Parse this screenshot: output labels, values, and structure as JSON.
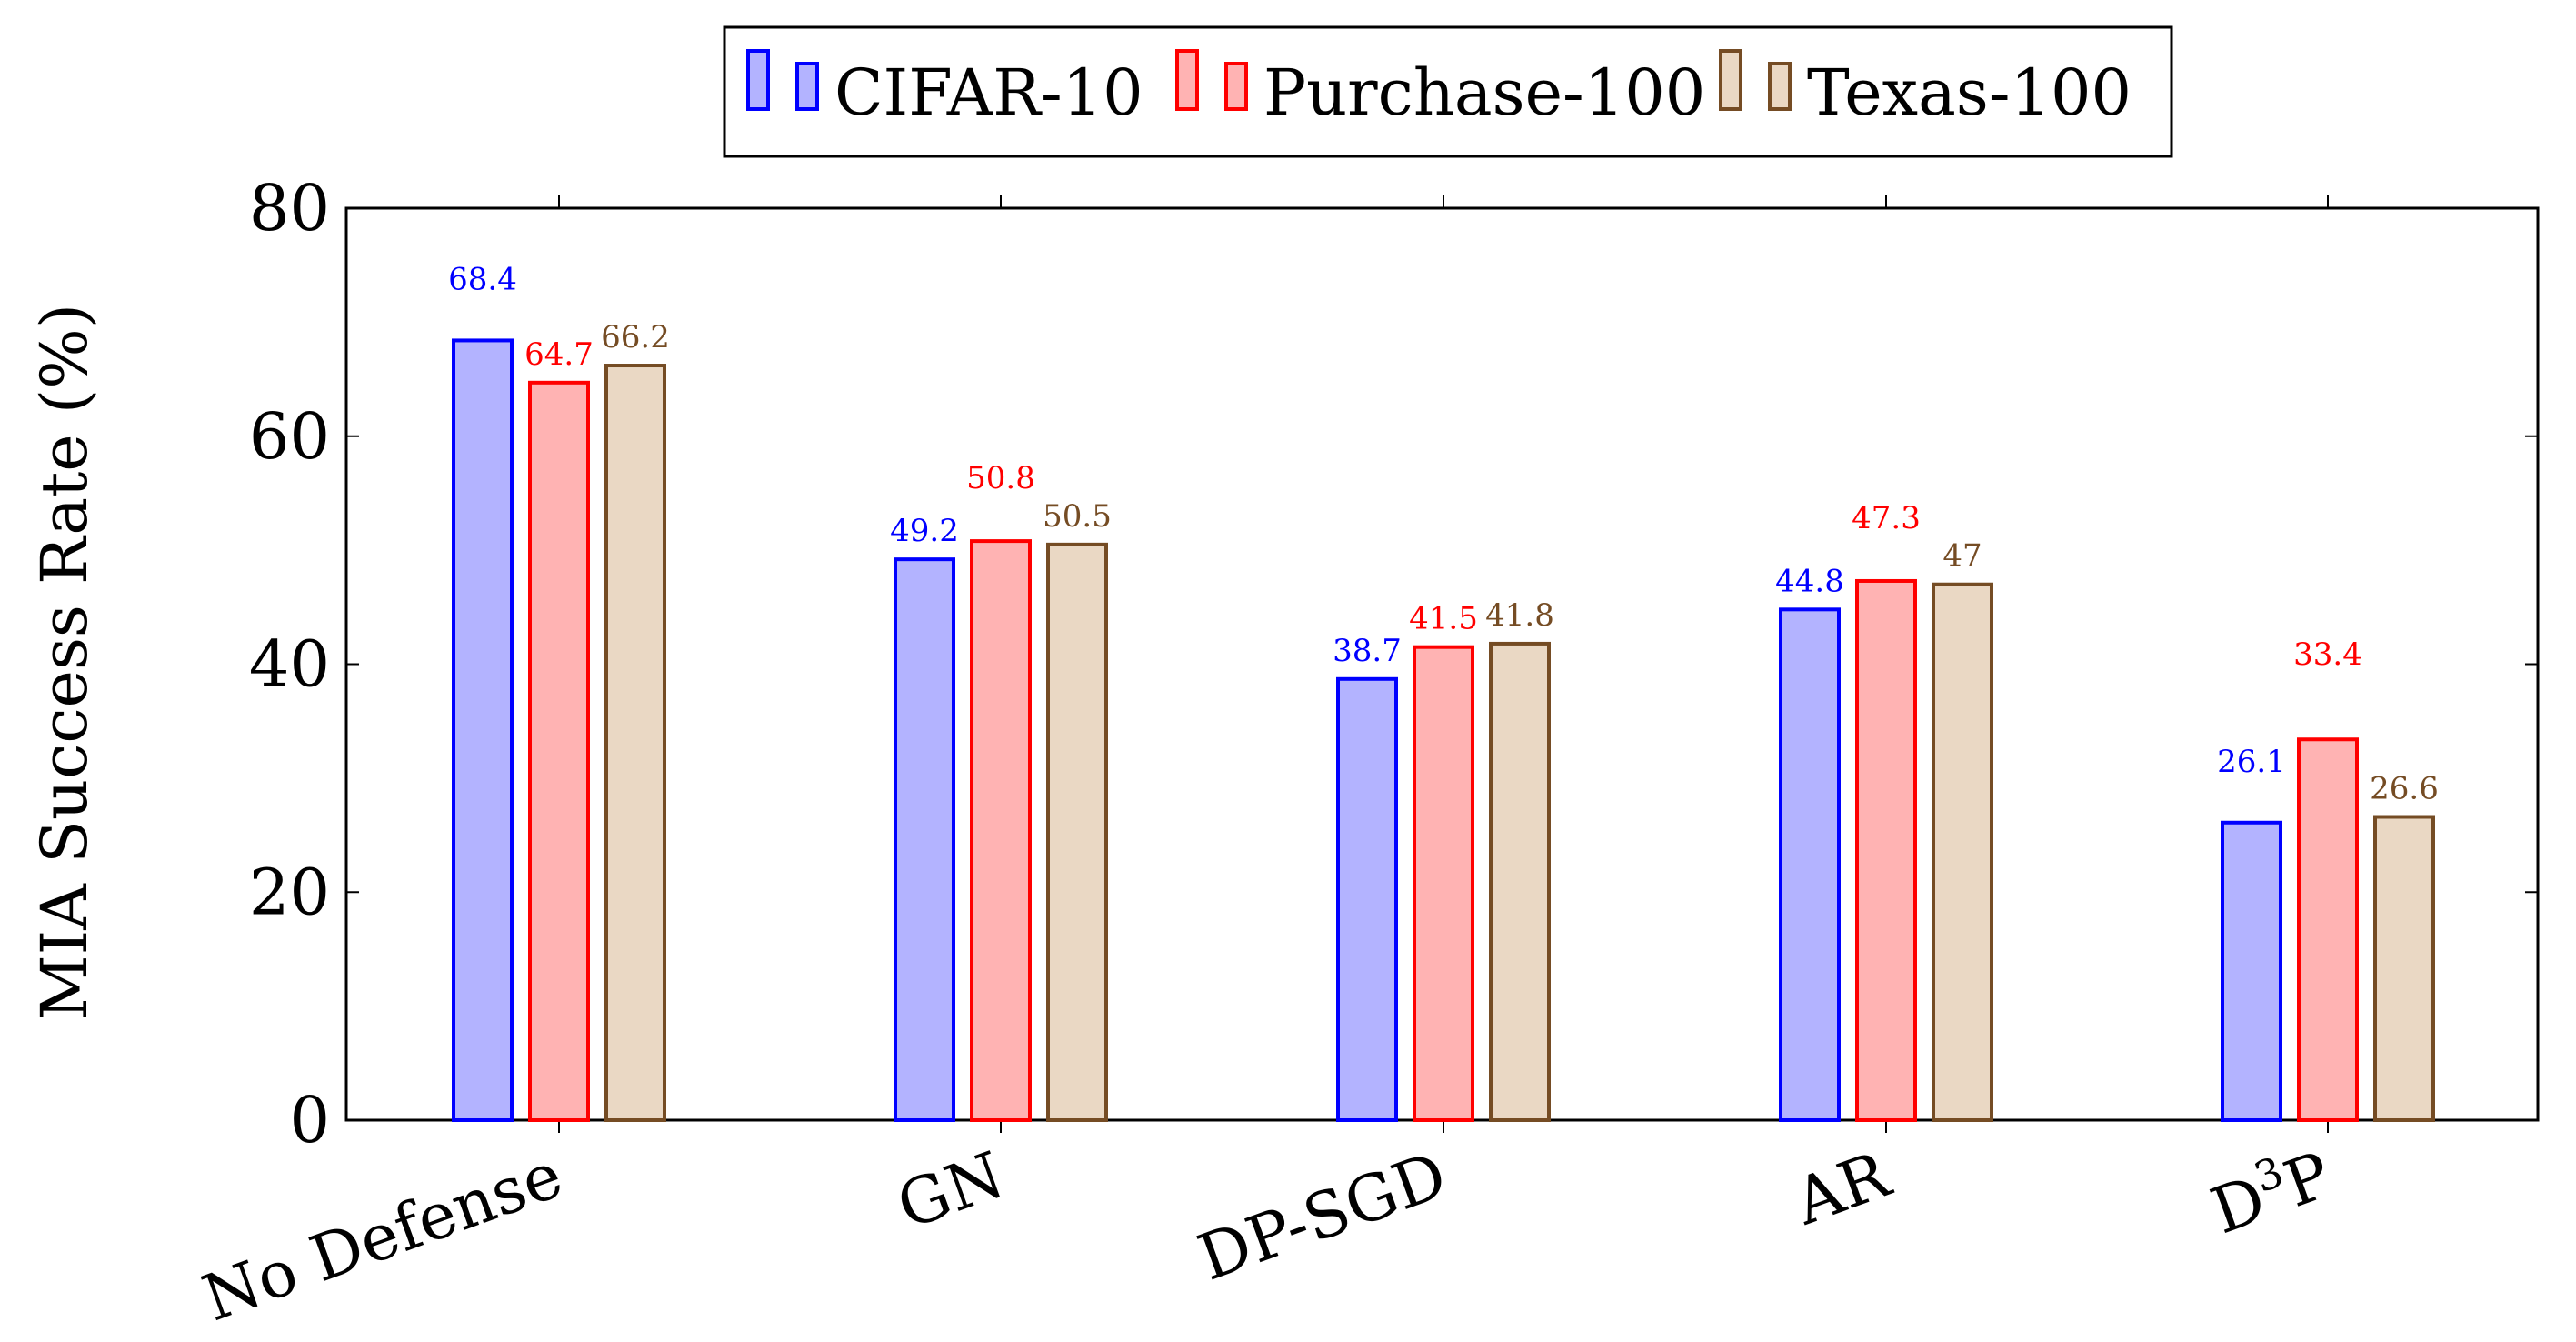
{
  "chart_data": {
    "type": "bar",
    "categories": [
      "No Defense",
      "GN",
      "DP-SGD",
      "AR",
      "D3P"
    ],
    "category_display": [
      {
        "main": "No Defense",
        "sup": "",
        "tail": ""
      },
      {
        "main": "GN",
        "sup": "",
        "tail": ""
      },
      {
        "main": "DP-SGD",
        "sup": "",
        "tail": ""
      },
      {
        "main": "AR",
        "sup": "",
        "tail": ""
      },
      {
        "main": "D",
        "sup": "3",
        "tail": "P"
      }
    ],
    "series": [
      {
        "name": "CIFAR-10",
        "values": [
          68.4,
          49.2,
          38.7,
          44.8,
          26.1
        ],
        "stroke": "#0000ff",
        "fill": "#b3b3ff"
      },
      {
        "name": "Purchase-100",
        "values": [
          64.7,
          50.8,
          41.5,
          47.3,
          33.4
        ],
        "stroke": "#ff0000",
        "fill": "#ffb3b3"
      },
      {
        "name": "Texas-100",
        "values": [
          66.2,
          50.5,
          41.8,
          47,
          26.6
        ],
        "stroke": "#754c24",
        "fill": "#ead8c4"
      }
    ],
    "value_labels": [
      [
        "68.4",
        "49.2",
        "38.7",
        "44.8",
        "26.1"
      ],
      [
        "64.7",
        "50.8",
        "41.5",
        "47.3",
        "33.4"
      ],
      [
        "66.2",
        "50.5",
        "41.8",
        "47",
        "26.6"
      ]
    ],
    "title": "",
    "xlabel": "",
    "ylabel": "MIA Success Rate (%)",
    "ylim": [
      0,
      80
    ],
    "yticks": [
      0,
      20,
      40,
      60,
      80
    ],
    "ytick_labels": [
      "0",
      "20",
      "40",
      "60",
      "80"
    ],
    "grid": false,
    "legend_position": "top-center"
  }
}
